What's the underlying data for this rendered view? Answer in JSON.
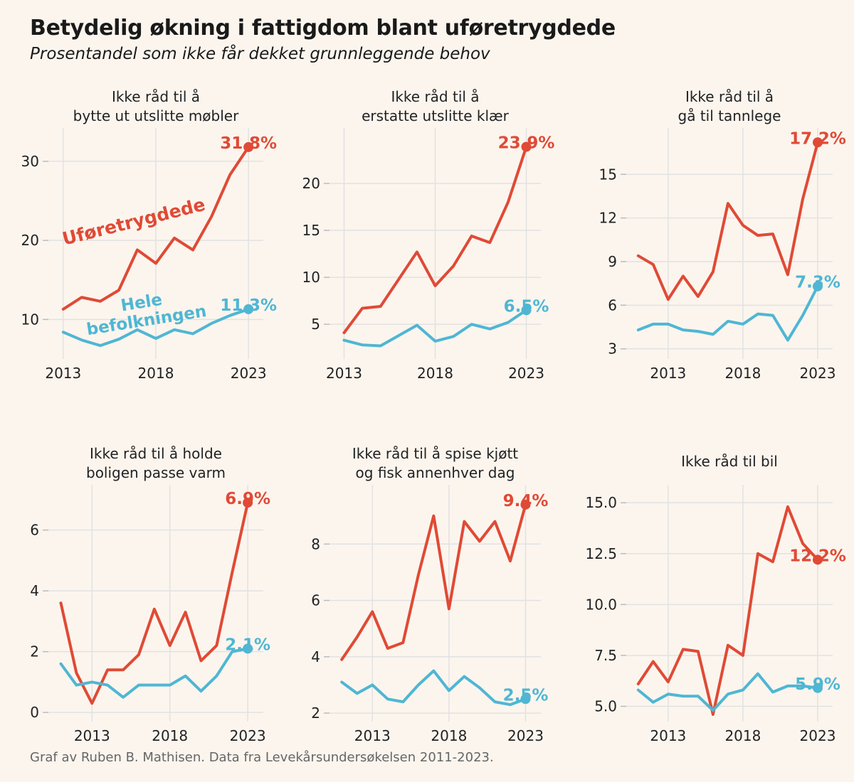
{
  "title": "Betydelig økning i fattigdom blant uføretrygdede",
  "subtitle": "Prosentandel som ikke får dekket grunnleggende behov",
  "footer": "Graf av Ruben B. Mathisen. Data fra Levekårsundersøkelsen 2011-2023.",
  "colors": {
    "disabled": "#e04a35",
    "population": "#4fb6d3",
    "grid": "#e2e2e2",
    "background": "#fbf5ee"
  },
  "chart_data": [
    {
      "type": "line",
      "title": [
        "Ikke råd til å",
        "bytte ut utslitte møbler"
      ],
      "x": [
        2013,
        2014,
        2015,
        2016,
        2017,
        2018,
        2019,
        2020,
        2021,
        2022,
        2023
      ],
      "xticks": [
        2013,
        2018,
        2023
      ],
      "yticks": [
        10,
        20,
        30
      ],
      "xlim": [
        2012.2,
        2023.8
      ],
      "ylim": [
        5,
        33.5
      ],
      "grid": true,
      "series": [
        {
          "name": "Uføretrygdede",
          "color": "#e04a35",
          "values": [
            11.3,
            12.8,
            12.3,
            13.7,
            18.8,
            17.1,
            20.3,
            18.8,
            23.0,
            28.3,
            31.8
          ]
        },
        {
          "name": "Hele befolkningen",
          "color": "#4fb6d3",
          "values": [
            8.4,
            7.4,
            6.7,
            7.5,
            8.7,
            7.6,
            8.7,
            8.2,
            9.5,
            10.5,
            11.3
          ]
        }
      ],
      "end_labels": [
        "31.8%",
        "11.3%"
      ]
    },
    {
      "type": "line",
      "title": [
        "Ikke råd til å",
        "erstatte utslitte klær"
      ],
      "x": [
        2013,
        2014,
        2015,
        2016,
        2017,
        2018,
        2019,
        2020,
        2021,
        2022,
        2023
      ],
      "xticks": [
        2013,
        2018,
        2023
      ],
      "yticks": [
        5,
        10,
        15,
        20
      ],
      "xlim": [
        2012.2,
        2023.8
      ],
      "ylim": [
        1.3,
        25.3
      ],
      "grid": true,
      "series": [
        {
          "name": "Uføretrygdede",
          "color": "#e04a35",
          "values": [
            4.1,
            6.7,
            6.9,
            9.8,
            12.7,
            9.1,
            11.2,
            14.4,
            13.7,
            18.0,
            23.9
          ]
        },
        {
          "name": "Hele befolkningen",
          "color": "#4fb6d3",
          "values": [
            3.3,
            2.8,
            2.7,
            3.8,
            4.9,
            3.2,
            3.7,
            5.0,
            4.5,
            5.2,
            6.5
          ]
        }
      ],
      "end_labels": [
        "23.9%",
        "6.5%"
      ]
    },
    {
      "type": "line",
      "title": [
        "Ikke råd til å",
        "gå til tannlege"
      ],
      "x": [
        2011,
        2012,
        2013,
        2014,
        2015,
        2016,
        2017,
        2018,
        2019,
        2020,
        2021,
        2022,
        2023
      ],
      "xticks": [
        2013,
        2018,
        2023
      ],
      "yticks": [
        3,
        6,
        9,
        12,
        15
      ],
      "xlim": [
        2010.2,
        2024.0
      ],
      "ylim": [
        2.3,
        17.8
      ],
      "grid": true,
      "series": [
        {
          "name": "Uføretrygdede",
          "color": "#e04a35",
          "values": [
            9.4,
            8.8,
            6.4,
            8.0,
            6.6,
            8.3,
            13.0,
            11.5,
            10.8,
            10.9,
            8.1,
            13.3,
            17.2
          ]
        },
        {
          "name": "Hele befolkningen",
          "color": "#4fb6d3",
          "values": [
            4.3,
            4.7,
            4.7,
            4.3,
            4.2,
            4.0,
            4.9,
            4.7,
            5.4,
            5.3,
            3.6,
            5.3,
            7.3
          ]
        }
      ],
      "end_labels": [
        "17.2%",
        "7.3%"
      ]
    },
    {
      "type": "line",
      "title": [
        "Ikke råd til å holde",
        "boligen passe varm"
      ],
      "x": [
        2011,
        2012,
        2013,
        2014,
        2015,
        2016,
        2017,
        2018,
        2019,
        2020,
        2021,
        2022,
        2023
      ],
      "xticks": [
        2013,
        2018,
        2023
      ],
      "yticks": [
        0,
        2,
        4,
        6
      ],
      "xlim": [
        2010.2,
        2024.0
      ],
      "ylim": [
        -0.3,
        7.3
      ],
      "grid": true,
      "series": [
        {
          "name": "Uføretrygdede",
          "color": "#e04a35",
          "values": [
            3.6,
            1.3,
            0.3,
            1.4,
            1.4,
            1.9,
            3.4,
            2.2,
            3.3,
            1.7,
            2.2,
            4.6,
            6.9
          ]
        },
        {
          "name": "Hele befolkningen",
          "color": "#4fb6d3",
          "values": [
            1.6,
            0.9,
            1.0,
            0.9,
            0.5,
            0.9,
            0.9,
            0.9,
            1.2,
            0.7,
            1.2,
            2.0,
            2.1
          ]
        }
      ],
      "end_labels": [
        "6.9%",
        "2.1%"
      ]
    },
    {
      "type": "line",
      "title": [
        "Ikke råd til å spise kjøtt",
        "og fisk annenhver dag"
      ],
      "x": [
        2011,
        2012,
        2013,
        2014,
        2015,
        2016,
        2017,
        2018,
        2019,
        2020,
        2021,
        2022,
        2023
      ],
      "xticks": [
        2013,
        2018,
        2023
      ],
      "yticks": [
        2,
        4,
        6,
        8
      ],
      "xlim": [
        2010.2,
        2024.0
      ],
      "ylim": [
        1.7,
        9.9
      ],
      "grid": true,
      "series": [
        {
          "name": "Uføretrygdede",
          "color": "#e04a35",
          "values": [
            3.9,
            4.7,
            5.6,
            4.3,
            4.5,
            6.9,
            9.0,
            5.7,
            8.8,
            8.1,
            8.8,
            7.4,
            9.4
          ]
        },
        {
          "name": "Hele befolkningen",
          "color": "#4fb6d3",
          "values": [
            3.1,
            2.7,
            3.0,
            2.5,
            2.4,
            3.0,
            3.5,
            2.8,
            3.3,
            2.9,
            2.4,
            2.3,
            2.5
          ]
        }
      ],
      "end_labels": [
        "9.4%",
        "2.5%"
      ]
    },
    {
      "type": "line",
      "title": [
        "Ikke råd til bil"
      ],
      "x": [
        2011,
        2012,
        2013,
        2014,
        2015,
        2016,
        2017,
        2018,
        2019,
        2020,
        2021,
        2022,
        2023
      ],
      "xticks": [
        2013,
        2018,
        2023
      ],
      "yticks": [
        5.0,
        7.5,
        10.0,
        12.5,
        15.0
      ],
      "ytick_labels": [
        "5.0",
        "7.5",
        "10.0",
        "12.5",
        "15.0"
      ],
      "xlim": [
        2010.2,
        2024.0
      ],
      "ylim": [
        4.25,
        15.6
      ],
      "grid": true,
      "series": [
        {
          "name": "Uføretrygdede",
          "color": "#e04a35",
          "values": [
            6.1,
            7.2,
            6.2,
            7.8,
            7.7,
            4.6,
            8.0,
            7.5,
            12.5,
            12.1,
            14.8,
            13.0,
            12.2
          ]
        },
        {
          "name": "Hele befolkningen",
          "color": "#4fb6d3",
          "values": [
            5.8,
            5.2,
            5.6,
            5.5,
            5.5,
            4.8,
            5.6,
            5.8,
            6.6,
            5.7,
            6.0,
            6.0,
            5.9
          ]
        }
      ],
      "end_labels": [
        "12.2%",
        "5.9%"
      ]
    }
  ],
  "annotations": {
    "disabled_label": "Uføretrygdede",
    "population_label": [
      "Hele",
      "befolkningen"
    ]
  }
}
